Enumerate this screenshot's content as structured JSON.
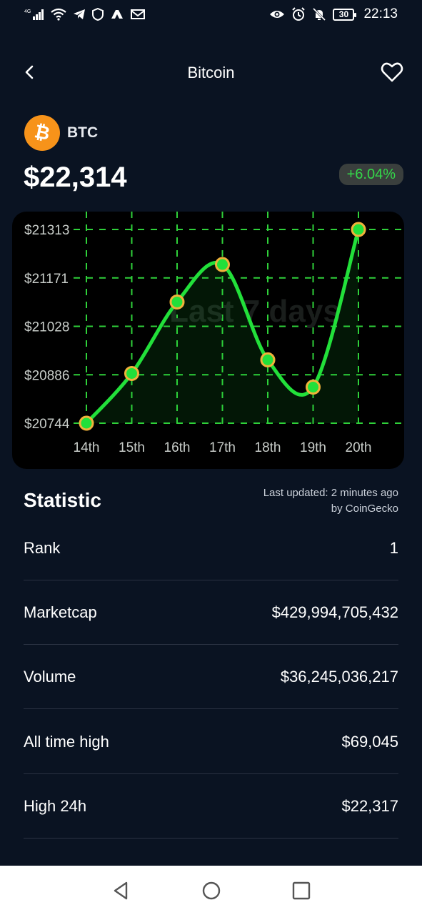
{
  "status_bar": {
    "network": "4G",
    "battery": "30",
    "time": "22:13"
  },
  "header": {
    "title": "Bitcoin",
    "back_icon": "chevron-left-icon",
    "favorite_icon": "heart-outline-icon"
  },
  "coin": {
    "symbol": "BTC",
    "price": "$22,314",
    "change": "+6.04%",
    "logo_color": "#f7931a"
  },
  "chart_data": {
    "type": "line",
    "title": "",
    "watermark": "Last 7 days",
    "x": [
      "14th",
      "15th",
      "16th",
      "17th",
      "18th",
      "19th",
      "20th"
    ],
    "y_ticks": [
      "$21313",
      "$21171",
      "$21028",
      "$20886",
      "$20744"
    ],
    "ylim": [
      20744,
      21313
    ],
    "series": [
      {
        "values": [
          20744,
          20890,
          21100,
          21210,
          20930,
          20850,
          21313
        ]
      }
    ],
    "grid": true,
    "line_color": "#22e03a",
    "point_fill": "#22e03a",
    "point_stroke": "#f0b23a"
  },
  "statistic": {
    "title": "Statistic",
    "updated_line1": "Last updated: 2 minutes ago",
    "updated_line2": "by CoinGecko",
    "rows": [
      {
        "label": "Rank",
        "value": "1"
      },
      {
        "label": "Marketcap",
        "value": "$429,994,705,432"
      },
      {
        "label": "Volume",
        "value": "$36,245,036,217"
      },
      {
        "label": "All time high",
        "value": "$69,045"
      },
      {
        "label": "High 24h",
        "value": "$22,317"
      }
    ]
  },
  "nav": {
    "back": "triangle-back-icon",
    "home": "circle-home-icon",
    "recents": "square-recents-icon"
  }
}
